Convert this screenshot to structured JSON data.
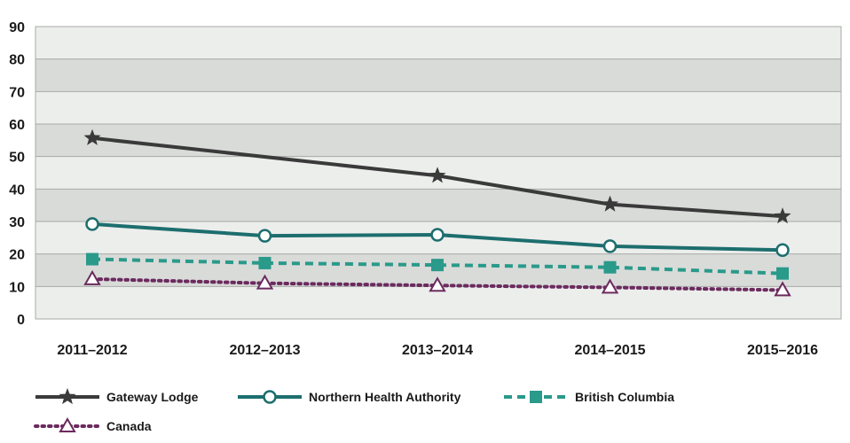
{
  "chart_data": {
    "type": "line",
    "title": "",
    "xlabel": "",
    "ylabel": "",
    "ylim": [
      0,
      90
    ],
    "yticks": [
      0,
      10,
      20,
      30,
      40,
      50,
      60,
      70,
      80,
      90
    ],
    "categories": [
      "2011–2012",
      "2012–2013",
      "2013–2014",
      "2014–2015",
      "2015–2016"
    ],
    "grid": "alternating horizontal bands",
    "legend_position": "bottom",
    "series": [
      {
        "name": "Gateway Lodge",
        "values": [
          55.7,
          null,
          44.1,
          35.3,
          31.6
        ],
        "color": "#3a3a3a",
        "dash": "solid",
        "marker": "star"
      },
      {
        "name": "Northern Health Authority",
        "values": [
          29.2,
          25.6,
          25.9,
          22.4,
          21.2
        ],
        "color": "#1d6e6e",
        "dash": "solid",
        "marker": "circle"
      },
      {
        "name": "British Columbia",
        "values": [
          18.4,
          17.2,
          16.6,
          15.9,
          14.0
        ],
        "color": "#2a9a8a",
        "dash": "dashed",
        "marker": "square"
      },
      {
        "name": "Canada",
        "values": [
          12.3,
          11.0,
          10.3,
          9.7,
          8.9
        ],
        "color": "#6b2a5e",
        "dash": "dotted",
        "marker": "triangle"
      }
    ]
  }
}
